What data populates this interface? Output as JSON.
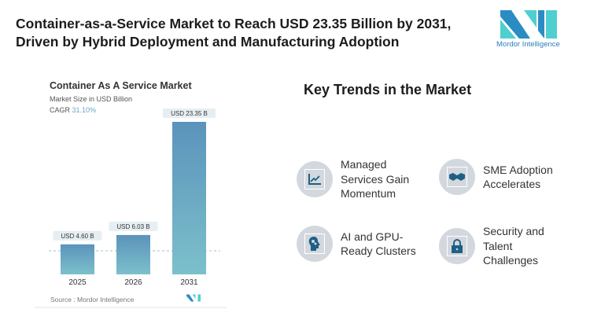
{
  "header": {
    "title": "Container-as-a-Service Market to Reach USD 23.35 Billion by 2031, Driven by Hybrid Deployment and Manufacturing Adoption"
  },
  "logo": {
    "text": "Mordor Intelligence",
    "colors": [
      "#2b8cc4",
      "#4fcfcf"
    ]
  },
  "chart_data": {
    "type": "bar",
    "title": "Container As A Service Market",
    "subtitle": "Market Size in USD Billion",
    "cagr_label": "CAGR",
    "cagr_value": "31.10%",
    "categories": [
      "2025",
      "2026",
      "2031"
    ],
    "values": [
      4.6,
      6.03,
      23.35
    ],
    "data_labels": [
      "USD 4.60 B",
      "USD 6.03 B",
      "USD 23.35 B"
    ],
    "ylim": [
      0,
      23.35
    ],
    "grid": false,
    "source": "Source :  Mordor Intelligence",
    "bar_color_top": "#5b93bb",
    "bar_color_bottom": "#7cc0cb"
  },
  "trends": {
    "heading": "Key Trends in the Market",
    "items": [
      {
        "label": "Managed Services Gain Momentum",
        "icon": "chart-up-icon"
      },
      {
        "label": "SME Adoption Accelerates",
        "icon": "handshake-icon"
      },
      {
        "label": "AI and GPU-Ready Clusters",
        "icon": "head-gears-icon"
      },
      {
        "label": "Security and Talent Challenges",
        "icon": "lock-icon"
      }
    ]
  }
}
